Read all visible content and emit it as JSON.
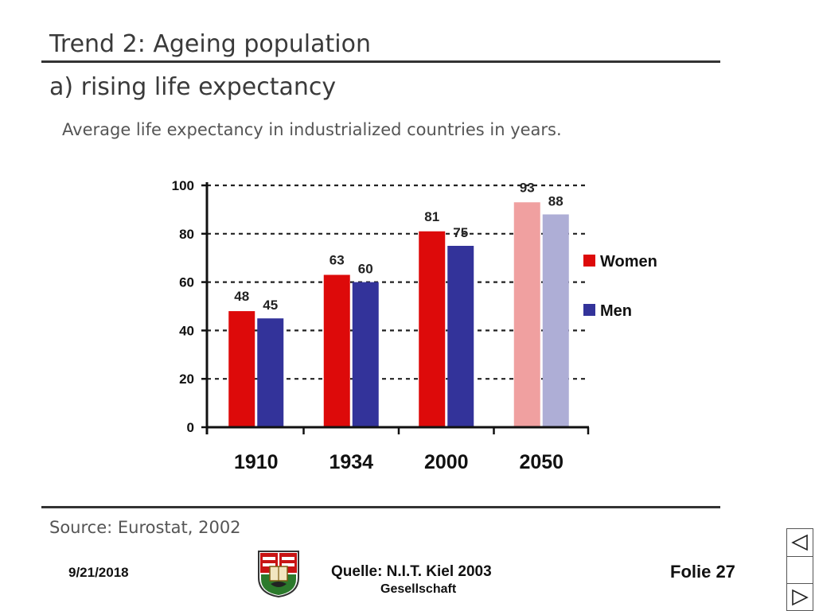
{
  "slide": {
    "title": "Trend 2: Ageing population",
    "subtitle": "a) rising life expectancy",
    "caption": "Average life expectancy in industrialized countries in years.",
    "source": "Source: Eurostat, 2002"
  },
  "footer": {
    "date": "9/21/2018",
    "quelle": "Quelle: N.I.T. Kiel 2003",
    "gesellschaft": "Gesellschaft",
    "folie": "Folie 27"
  },
  "nav": {
    "prev_icon": "triangle-left-icon",
    "next_icon": "triangle-right-icon"
  },
  "colors": {
    "women": "#dd0a0a",
    "men": "#33339a",
    "women_projected": "#f0a0a0",
    "men_projected": "#aeaed6"
  },
  "chart_data": {
    "type": "bar",
    "categories": [
      "1910",
      "1934",
      "2000",
      "2050"
    ],
    "series": [
      {
        "name": "Women",
        "values": [
          48,
          63,
          81,
          93
        ]
      },
      {
        "name": "Men",
        "values": [
          45,
          60,
          75,
          88
        ]
      }
    ],
    "data_labels": {
      "Women": [
        "48",
        "63",
        "81",
        "93"
      ],
      "Men": [
        "45",
        "60",
        "75",
        "88"
      ]
    },
    "yticks": [
      "0",
      "20",
      "40",
      "60",
      "80",
      "100"
    ],
    "ylim": [
      0,
      100
    ],
    "grid": "dashed horizontal",
    "legend": "right",
    "projected_category": "2050"
  }
}
